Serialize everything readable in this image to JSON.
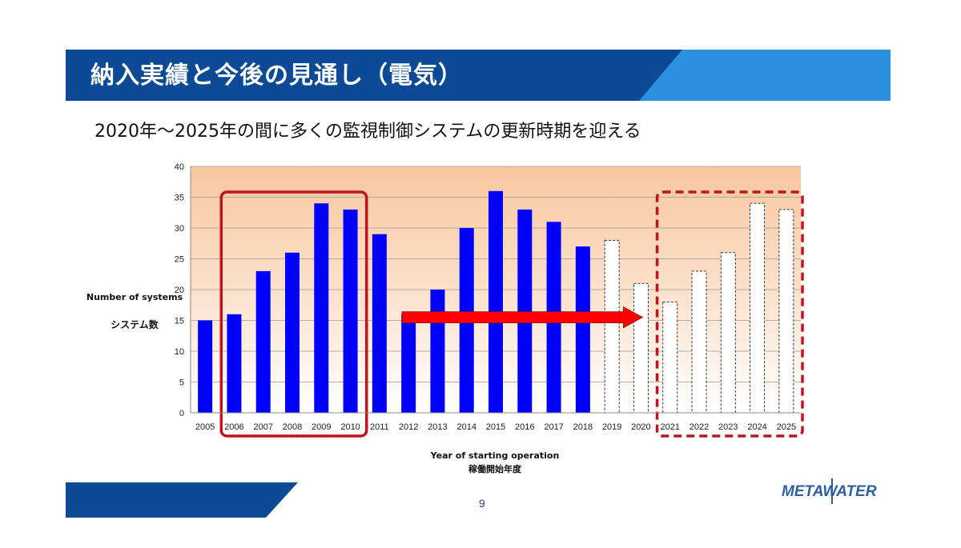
{
  "header": {
    "title": "納入実績と今後の見通し（電気）"
  },
  "subtitle": "2020年～2025年の間に多くの監視制御システムの更新時期を迎える",
  "page_number": "9",
  "logo_text": "METAWATER",
  "colors": {
    "header_dark": "#0c4a96",
    "header_light": "#2d8fe0",
    "bar_actual": "#0000ff",
    "highlight": "#c0141c",
    "arrow": "#ff0000",
    "footer": "#0c4a96"
  },
  "chart_data": {
    "type": "bar",
    "categories": [
      "2005",
      "2006",
      "2007",
      "2008",
      "2009",
      "2010",
      "2011",
      "2012",
      "2013",
      "2014",
      "2015",
      "2016",
      "2017",
      "2018",
      "2019",
      "2020",
      "2021",
      "2022",
      "2023",
      "2024",
      "2025"
    ],
    "values": [
      15,
      16,
      23,
      26,
      34,
      33,
      29,
      16,
      20,
      30,
      36,
      33,
      31,
      27,
      28,
      21,
      18,
      23,
      26,
      34,
      33
    ],
    "series": [
      {
        "values": [
          15,
          16,
          23,
          26,
          34,
          33,
          29,
          16,
          20,
          30,
          36,
          33,
          31,
          27,
          null,
          null,
          null,
          null,
          null,
          null,
          null
        ],
        "style": "solid-blue"
      },
      {
        "values": [
          null,
          null,
          null,
          null,
          null,
          null,
          null,
          null,
          null,
          null,
          null,
          null,
          null,
          null,
          28,
          21,
          18,
          23,
          26,
          34,
          33
        ],
        "style": "dashed-white"
      }
    ],
    "xlabel": "Year of starting operation",
    "xlabel_jp": "稼働開始年度",
    "ylabel": "Number of systems",
    "ylabel_jp": "システム数",
    "ylim": [
      0,
      40
    ],
    "yticks": [
      0,
      5,
      10,
      15,
      20,
      25,
      30,
      35,
      40
    ],
    "grid": true,
    "highlights": [
      {
        "style": "solid",
        "from": "2006",
        "to": "2010"
      },
      {
        "style": "dashed",
        "from": "2021",
        "to": "2025"
      }
    ],
    "arrow": {
      "from": "2012",
      "to": "2020",
      "at_value": 15.5
    }
  }
}
